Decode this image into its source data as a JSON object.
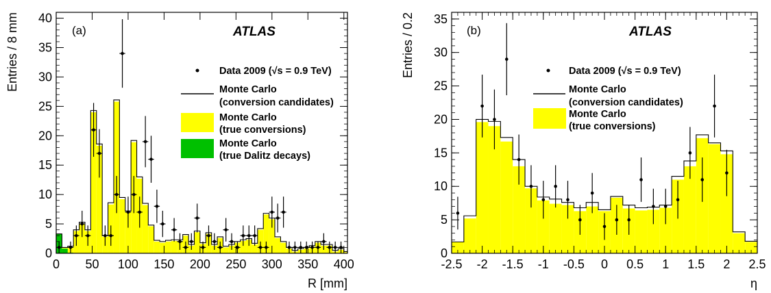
{
  "chart_data": [
    {
      "type": "histogram",
      "panel_label": "(a)",
      "title": "ATLAS",
      "xlabel": "R [mm]",
      "ylabel": "Entries / 8 mm",
      "xlim": [
        0,
        405
      ],
      "ylim": [
        0,
        41
      ],
      "xticks": [
        "0",
        "50",
        "100",
        "150",
        "200",
        "250",
        "300",
        "350",
        "400"
      ],
      "yticks": [
        "0",
        "5",
        "10",
        "15",
        "20",
        "25",
        "30",
        "35",
        "40"
      ],
      "x_tick_values": [
        0,
        50,
        100,
        150,
        200,
        250,
        300,
        350,
        400
      ],
      "y_tick_values": [
        0,
        5,
        10,
        15,
        20,
        25,
        30,
        35,
        40
      ],
      "legend": [
        {
          "text": "Data 2009 (√s = 0.9 TeV)",
          "kind": "data"
        },
        {
          "text": "Monte Carlo",
          "text2": "(conversion candidates)",
          "kind": "line"
        },
        {
          "text": "Monte Carlo",
          "text2": "(true conversions)",
          "kind": "fill",
          "color": "#ffff00"
        },
        {
          "text": "Monte Carlo",
          "text2": "(true Dalitz decays)",
          "kind": "fill",
          "color": "#00c000"
        }
      ],
      "bin_edges": [
        0,
        8,
        16,
        24,
        32,
        40,
        48,
        56,
        64,
        72,
        80,
        88,
        96,
        104,
        112,
        120,
        128,
        136,
        144,
        152,
        160,
        168,
        176,
        184,
        192,
        200,
        208,
        216,
        224,
        232,
        240,
        248,
        256,
        264,
        272,
        280,
        288,
        296,
        304,
        312,
        320,
        328,
        336,
        344,
        352,
        360,
        368,
        376,
        384,
        392,
        400,
        405
      ],
      "mc_candidates": [
        3.3,
        1.0,
        1.2,
        4.0,
        5.3,
        4.0,
        24.3,
        18.6,
        3.0,
        8.6,
        26.1,
        9.5,
        7.2,
        19.2,
        13.0,
        8.5,
        4.8,
        2.2,
        2.0,
        2.2,
        2.3,
        2.3,
        3.2,
        1.5,
        3.8,
        1.8,
        3.5,
        1.5,
        2.8,
        1.2,
        1.5,
        2.0,
        2.3,
        2.5,
        1.7,
        4.2,
        6.8,
        6.0,
        2.8,
        2.0,
        1.0,
        0.5,
        0.8,
        1.0,
        1.3,
        2.0,
        1.5,
        1.5,
        0.5,
        0.8,
        0.3
      ],
      "mc_true_conversions": [
        3.1,
        0.9,
        1.0,
        3.8,
        5.0,
        3.8,
        24.0,
        18.3,
        2.8,
        8.3,
        25.8,
        9.2,
        7.0,
        18.9,
        12.7,
        8.2,
        4.6,
        2.0,
        1.8,
        2.0,
        2.1,
        2.1,
        3.0,
        1.3,
        3.6,
        1.6,
        3.3,
        1.3,
        2.6,
        1.0,
        1.3,
        1.8,
        2.1,
        2.3,
        1.5,
        4.0,
        6.6,
        5.8,
        2.6,
        1.8,
        0.8,
        0.3,
        0.6,
        0.8,
        1.1,
        1.8,
        1.3,
        1.3,
        0.3,
        0.6,
        0.2
      ],
      "mc_dalitz": [
        3.3,
        0.8,
        0.1,
        0,
        0,
        0,
        0,
        0,
        0,
        0,
        0,
        0,
        0,
        0,
        0,
        0,
        0,
        0,
        0,
        0,
        0,
        0,
        0,
        0,
        0,
        0,
        0,
        0,
        0,
        0,
        0,
        0,
        0,
        0,
        0,
        0,
        0,
        0,
        0,
        0,
        0,
        0,
        0,
        0,
        0,
        0,
        0,
        0,
        0,
        0,
        0
      ],
      "data_points": [
        {
          "x": 4,
          "y": 1
        },
        {
          "x": 20,
          "y": 1
        },
        {
          "x": 28,
          "y": 3
        },
        {
          "x": 36,
          "y": 5
        },
        {
          "x": 44,
          "y": 3
        },
        {
          "x": 52,
          "y": 21
        },
        {
          "x": 60,
          "y": 17
        },
        {
          "x": 68,
          "y": 3
        },
        {
          "x": 76,
          "y": 3
        },
        {
          "x": 84,
          "y": 10
        },
        {
          "x": 92,
          "y": 34
        },
        {
          "x": 100,
          "y": 7
        },
        {
          "x": 108,
          "y": 10
        },
        {
          "x": 116,
          "y": 7
        },
        {
          "x": 124,
          "y": 19
        },
        {
          "x": 132,
          "y": 16
        },
        {
          "x": 140,
          "y": 8
        },
        {
          "x": 148,
          "y": 5
        },
        {
          "x": 164,
          "y": 4
        },
        {
          "x": 172,
          "y": 2
        },
        {
          "x": 180,
          "y": 1
        },
        {
          "x": 188,
          "y": 2
        },
        {
          "x": 196,
          "y": 6
        },
        {
          "x": 204,
          "y": 1
        },
        {
          "x": 212,
          "y": 3
        },
        {
          "x": 220,
          "y": 2
        },
        {
          "x": 228,
          "y": 1
        },
        {
          "x": 236,
          "y": 4
        },
        {
          "x": 244,
          "y": 2
        },
        {
          "x": 252,
          "y": 1
        },
        {
          "x": 260,
          "y": 3
        },
        {
          "x": 268,
          "y": 3
        },
        {
          "x": 276,
          "y": 3
        },
        {
          "x": 284,
          "y": 1
        },
        {
          "x": 292,
          "y": 1
        },
        {
          "x": 300,
          "y": 7
        },
        {
          "x": 308,
          "y": 6
        },
        {
          "x": 316,
          "y": 7
        },
        {
          "x": 324,
          "y": 1
        },
        {
          "x": 332,
          "y": 1
        },
        {
          "x": 340,
          "y": 1
        },
        {
          "x": 348,
          "y": 1
        },
        {
          "x": 356,
          "y": 1
        },
        {
          "x": 364,
          "y": 1
        },
        {
          "x": 372,
          "y": 2
        },
        {
          "x": 380,
          "y": 1
        },
        {
          "x": 388,
          "y": 1
        },
        {
          "x": 396,
          "y": 1
        }
      ]
    },
    {
      "type": "histogram",
      "panel_label": "(b)",
      "title": "ATLAS",
      "xlabel": "η",
      "ylabel": "Entries / 0.2",
      "xlim": [
        -2.5,
        2.5
      ],
      "ylim": [
        0,
        36
      ],
      "xticks": [
        "-2.5",
        "-2",
        "-1.5",
        "-1",
        "-0.5",
        "0",
        "0.5",
        "1",
        "1.5",
        "2",
        "2.5"
      ],
      "yticks": [
        "0",
        "5",
        "10",
        "15",
        "20",
        "25",
        "30",
        "35"
      ],
      "x_tick_values": [
        -2.5,
        -2,
        -1.5,
        -1,
        -0.5,
        0,
        0.5,
        1,
        1.5,
        2,
        2.5
      ],
      "y_tick_values": [
        0,
        5,
        10,
        15,
        20,
        25,
        30,
        35
      ],
      "legend": [
        {
          "text": "Data 2009 (√s = 0.9 TeV)",
          "kind": "data"
        },
        {
          "text": "Monte Carlo",
          "text2": "(conversion candidates)",
          "kind": "line"
        },
        {
          "text": "Monte Carlo",
          "text2": "(true conversions)",
          "kind": "fill",
          "color": "#ffff00"
        }
      ],
      "bin_edges": [
        -2.5,
        -2.3,
        -2.1,
        -1.9,
        -1.7,
        -1.5,
        -1.3,
        -1.1,
        -0.9,
        -0.7,
        -0.5,
        -0.3,
        -0.1,
        0.1,
        0.3,
        0.5,
        0.7,
        0.9,
        1.1,
        1.3,
        1.5,
        1.7,
        1.9,
        2.1,
        2.3,
        2.5
      ],
      "mc_candidates": [
        1.7,
        5.6,
        20.0,
        19.7,
        17.3,
        14.0,
        10.0,
        8.4,
        8.1,
        7.6,
        6.8,
        7.6,
        6.5,
        8.5,
        7.2,
        6.8,
        6.9,
        7.2,
        11.5,
        13.8,
        17.7,
        16.5,
        15.3,
        3.2,
        1.8
      ],
      "mc_true_conversions": [
        1.7,
        5.2,
        19.6,
        19.0,
        16.7,
        13.0,
        9.7,
        7.9,
        7.4,
        7.2,
        6.3,
        7.0,
        6.3,
        8.3,
        6.7,
        6.4,
        6.5,
        6.8,
        11.0,
        13.0,
        17.2,
        16.3,
        14.8,
        3.0,
        1.7
      ],
      "data_points": [
        {
          "x": -2.4,
          "y": 6
        },
        {
          "x": -2.0,
          "y": 22
        },
        {
          "x": -1.8,
          "y": 20
        },
        {
          "x": -1.6,
          "y": 29
        },
        {
          "x": -1.4,
          "y": 14
        },
        {
          "x": -1.2,
          "y": 10
        },
        {
          "x": -1.0,
          "y": 8
        },
        {
          "x": -0.8,
          "y": 10
        },
        {
          "x": -0.6,
          "y": 8
        },
        {
          "x": -0.4,
          "y": 5
        },
        {
          "x": -0.2,
          "y": 9
        },
        {
          "x": 0.0,
          "y": 4
        },
        {
          "x": 0.2,
          "y": 5
        },
        {
          "x": 0.4,
          "y": 5
        },
        {
          "x": 0.6,
          "y": 11
        },
        {
          "x": 0.8,
          "y": 7
        },
        {
          "x": 1.0,
          "y": 7
        },
        {
          "x": 1.2,
          "y": 8
        },
        {
          "x": 1.4,
          "y": 15
        },
        {
          "x": 1.6,
          "y": 11
        },
        {
          "x": 1.8,
          "y": 22
        },
        {
          "x": 2.0,
          "y": 12
        }
      ]
    }
  ]
}
